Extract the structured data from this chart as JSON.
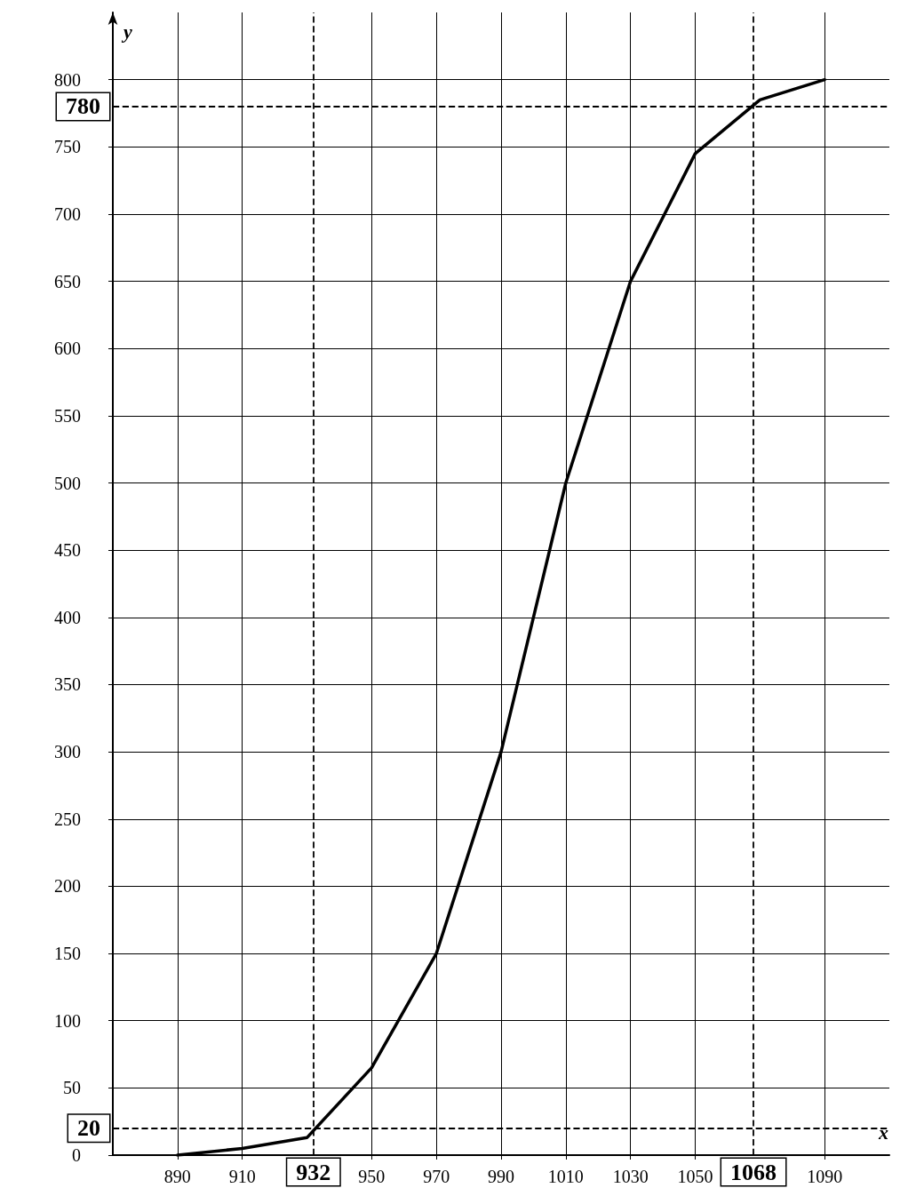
{
  "chart_data": {
    "type": "line",
    "xlabel": "x",
    "ylabel": "y",
    "x": [
      890,
      910,
      930,
      950,
      970,
      990,
      1010,
      1030,
      1050,
      1070,
      1090
    ],
    "series": [
      {
        "color": "#000000",
        "values": [
          0,
          5,
          13,
          65,
          150,
          300,
          500,
          650,
          745,
          785,
          800
        ]
      }
    ],
    "xlim": [
      870,
      1110
    ],
    "xticks": [
      890,
      910,
      950,
      970,
      990,
      1010,
      1030,
      1050,
      1090
    ],
    "ylim": [
      0,
      850
    ],
    "yticks": [
      0,
      50,
      100,
      150,
      200,
      250,
      300,
      350,
      400,
      450,
      500,
      550,
      600,
      650,
      700,
      750,
      800
    ],
    "grid": true,
    "marker": "none",
    "line_style": "solid",
    "ref_lines": [
      {
        "axis": "y",
        "value": 780,
        "label": "780",
        "line_style": "dashed",
        "color": "#000000"
      },
      {
        "axis": "x",
        "value": 1068,
        "label": "1068",
        "line_style": "dashed",
        "color": "#000000"
      },
      {
        "axis": "y",
        "value": 20,
        "label": "20",
        "line_style": "dashed",
        "color": "#000000"
      },
      {
        "axis": "x",
        "value": 932,
        "label": "932",
        "line_style": "dashed",
        "color": "#000000"
      }
    ]
  }
}
